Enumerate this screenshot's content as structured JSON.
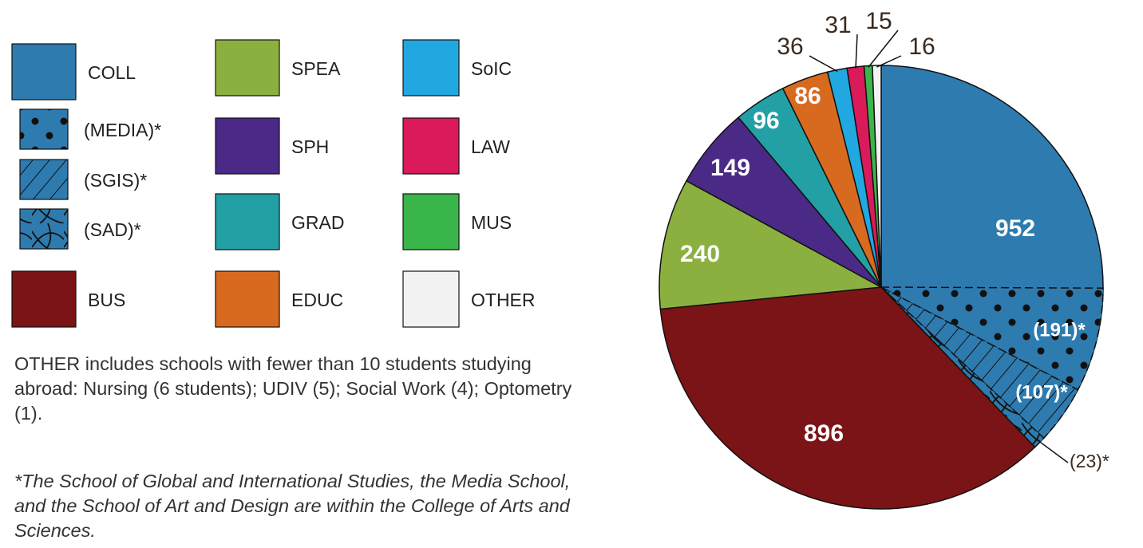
{
  "chart_data": {
    "type": "pie",
    "categories": [
      "COLL",
      "BUS",
      "SPEA",
      "SPH",
      "GRAD",
      "EDUC",
      "SoIC",
      "LAW",
      "MUS",
      "OTHER"
    ],
    "values": [
      952,
      896,
      240,
      149,
      96,
      86,
      36,
      31,
      15,
      16
    ],
    "colors": [
      "#2e7bb0",
      "#7b1416",
      "#8bb040",
      "#4a2a86",
      "#22a0a6",
      "#d86a20",
      "#22a8e0",
      "#da1a5a",
      "#3ab54a",
      "#f2f2f2"
    ],
    "parts": {
      "of": "COLL",
      "categories": [
        "(MEDIA)*",
        "(SGIS)*",
        "(SAD)*"
      ],
      "values": [
        191,
        107,
        23
      ],
      "value_labels": [
        "(191)*",
        "(107)*",
        "(23)*"
      ],
      "patterns": [
        "dots",
        "hatch",
        "curves"
      ]
    },
    "notes": [
      "OTHER includes schools with fewer than 10 students studying abroad: Nursing (6 students); UDIV (5); Social Work (4); Optometry (1).",
      "*The School of Global and International Studies, the Media School, and the School of Art and Design are within the College of Arts and Sciences."
    ]
  }
}
